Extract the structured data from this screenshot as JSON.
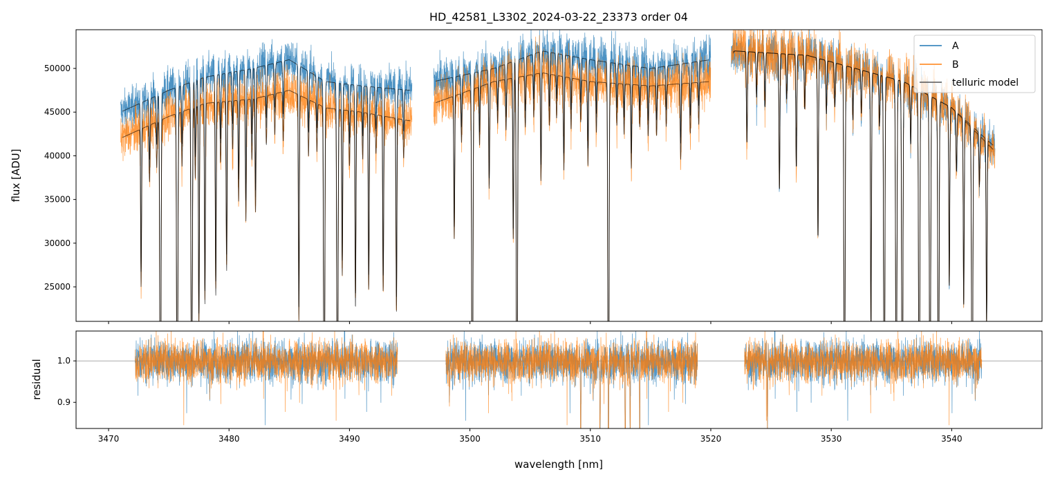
{
  "chart_data": [
    {
      "type": "line",
      "title": "HD_42581_L3302_2024-03-22_23373  order 04",
      "xlabel": "",
      "ylabel": "flux [ADU]",
      "xlim": [
        3467.3,
        3547.5
      ],
      "ylim": [
        21050,
        54430
      ],
      "xticks": [
        3470,
        3480,
        3490,
        3500,
        3510,
        3520,
        3530,
        3540
      ],
      "yticks": [
        25000,
        30000,
        35000,
        40000,
        45000,
        50000
      ],
      "ytick_labels": [
        "25000",
        "30000",
        "35000",
        "40000",
        "45000",
        "50000"
      ],
      "legend": {
        "placement": "top-right",
        "entries": [
          "A",
          "B",
          "telluric model"
        ]
      },
      "segments": [
        [
          3471.0,
          3495.2
        ],
        [
          3497.0,
          3520.0
        ],
        [
          3521.7,
          3543.6
        ]
      ],
      "series": [
        {
          "name": "A",
          "color": "#1f77b4",
          "noise_frac": 0.025,
          "continuum": [
            [
              3471,
              45000
            ],
            [
              3475,
              47500
            ],
            [
              3478,
              49000
            ],
            [
              3482,
              50000
            ],
            [
              3485,
              51000
            ],
            [
              3488,
              48500
            ],
            [
              3491,
              48000
            ],
            [
              3495,
              47500
            ],
            [
              3497,
              48500
            ],
            [
              3502,
              50000
            ],
            [
              3506,
              52000
            ],
            [
              3510,
              51000
            ],
            [
              3515,
              50000
            ],
            [
              3520,
              51000
            ],
            [
              3522,
              52000
            ],
            [
              3528,
              51500
            ],
            [
              3532,
              50000
            ],
            [
              3536,
              48500
            ],
            [
              3540,
              45500
            ],
            [
              3543.6,
              41000
            ]
          ]
        },
        {
          "name": "B",
          "color": "#ff7f0e",
          "noise_frac": 0.03,
          "continuum": [
            [
              3471,
              42000
            ],
            [
              3475,
              44500
            ],
            [
              3478,
              46000
            ],
            [
              3482,
              46500
            ],
            [
              3485,
              47500
            ],
            [
              3488,
              45500
            ],
            [
              3491,
              45000
            ],
            [
              3495,
              44000
            ],
            [
              3497,
              46000
            ],
            [
              3502,
              48500
            ],
            [
              3506,
              49500
            ],
            [
              3510,
              48500
            ],
            [
              3515,
              48000
            ],
            [
              3520,
              48500
            ],
            [
              3522,
              52000
            ],
            [
              3528,
              51500
            ],
            [
              3532,
              50000
            ],
            [
              3536,
              48500
            ],
            [
              3540,
              45500
            ],
            [
              3543.6,
              40500
            ]
          ]
        },
        {
          "name": "telluric model",
          "color": "#000000"
        }
      ],
      "telluric_lines": [
        [
          3472.7,
          0.42
        ],
        [
          3474.3,
          0.9
        ],
        [
          3475.7,
          0.9
        ],
        [
          3476.9,
          0.9
        ],
        [
          3477.5,
          0.55
        ],
        [
          3478.0,
          0.5
        ],
        [
          3478.9,
          0.48
        ],
        [
          3479.8,
          0.42
        ],
        [
          3480.8,
          0.25
        ],
        [
          3481.4,
          0.3
        ],
        [
          3482.2,
          0.28
        ],
        [
          3485.8,
          0.55
        ],
        [
          3487.9,
          0.9
        ],
        [
          3489.0,
          0.9
        ],
        [
          3489.4,
          0.42
        ],
        [
          3490.5,
          0.5
        ],
        [
          3491.6,
          0.45
        ],
        [
          3492.8,
          0.45
        ],
        [
          3493.9,
          0.5
        ],
        [
          3498.7,
          0.35
        ],
        [
          3500.2,
          0.9
        ],
        [
          3501.6,
          0.25
        ],
        [
          3503.6,
          0.38
        ],
        [
          3503.9,
          0.9
        ],
        [
          3505.9,
          0.25
        ],
        [
          3507.8,
          0.22
        ],
        [
          3509.8,
          0.2
        ],
        [
          3511.5,
          0.9
        ],
        [
          3513.4,
          0.2
        ],
        [
          3515.5,
          0.12
        ],
        [
          3517.5,
          0.18
        ],
        [
          3523.0,
          0.2
        ],
        [
          3525.7,
          0.3
        ],
        [
          3527.1,
          0.25
        ],
        [
          3528.9,
          0.4
        ],
        [
          3531.1,
          0.9
        ],
        [
          3533.3,
          0.6
        ],
        [
          3534.4,
          0.9
        ],
        [
          3535.4,
          0.9
        ],
        [
          3535.9,
          0.9
        ],
        [
          3537.3,
          0.9
        ],
        [
          3538.2,
          0.9
        ],
        [
          3538.9,
          0.9
        ],
        [
          3539.8,
          0.45
        ],
        [
          3541.0,
          0.48
        ],
        [
          3541.7,
          0.9
        ],
        [
          3542.9,
          0.5
        ],
        [
          3473.4,
          0.15
        ],
        [
          3474.0,
          0.12
        ],
        [
          3476.1,
          0.14
        ],
        [
          3477.2,
          0.18
        ],
        [
          3479.3,
          0.15
        ],
        [
          3480.3,
          0.12
        ],
        [
          3481.9,
          0.15
        ],
        [
          3483.1,
          0.12
        ],
        [
          3483.8,
          0.1
        ],
        [
          3484.5,
          0.12
        ],
        [
          3486.6,
          0.14
        ],
        [
          3487.3,
          0.12
        ],
        [
          3490.0,
          0.14
        ],
        [
          3491.1,
          0.12
        ],
        [
          3492.2,
          0.1
        ],
        [
          3494.5,
          0.1
        ],
        [
          3499.3,
          0.12
        ],
        [
          3500.8,
          0.14
        ],
        [
          3502.3,
          0.1
        ],
        [
          3503.0,
          0.12
        ],
        [
          3504.6,
          0.12
        ],
        [
          3505.3,
          0.1
        ],
        [
          3506.6,
          0.12
        ],
        [
          3507.2,
          0.1
        ],
        [
          3508.4,
          0.12
        ],
        [
          3509.2,
          0.1
        ],
        [
          3510.5,
          0.12
        ],
        [
          3512.2,
          0.1
        ],
        [
          3512.8,
          0.12
        ],
        [
          3514.1,
          0.1
        ],
        [
          3514.8,
          0.12
        ],
        [
          3516.3,
          0.1
        ],
        [
          3518.3,
          0.12
        ],
        [
          3519.0,
          0.1
        ],
        [
          3523.8,
          0.1
        ],
        [
          3524.5,
          0.12
        ],
        [
          3526.3,
          0.1
        ],
        [
          3527.8,
          0.12
        ],
        [
          3529.6,
          0.12
        ],
        [
          3530.3,
          0.1
        ],
        [
          3531.8,
          0.12
        ],
        [
          3532.5,
          0.1
        ],
        [
          3534.0,
          0.12
        ],
        [
          3536.6,
          0.14
        ],
        [
          3540.4,
          0.15
        ],
        [
          3542.3,
          0.14
        ]
      ]
    },
    {
      "type": "line",
      "title": "",
      "xlabel": "wavelength [nm]",
      "ylabel": "residual",
      "xlim": [
        3467.3,
        3547.5
      ],
      "ylim": [
        0.837,
        1.072
      ],
      "xticks": [
        3470,
        3480,
        3490,
        3500,
        3510,
        3520,
        3530,
        3540
      ],
      "xtick_labels": [
        "3470",
        "3480",
        "3490",
        "3500",
        "3510",
        "3520",
        "3530",
        "3540"
      ],
      "yticks": [
        0.9,
        1.0
      ],
      "ytick_labels": [
        "0.9",
        "1.0"
      ],
      "reference_line": 1.0,
      "segments": [
        [
          3472.2,
          3494.0
        ],
        [
          3498.0,
          3518.9
        ],
        [
          3522.8,
          3542.5
        ]
      ],
      "series": [
        {
          "name": "A",
          "color": "#1f77b4",
          "noise": 0.025
        },
        {
          "name": "B",
          "color": "#ff7f0e",
          "noise": 0.025
        }
      ],
      "dips": [
        [
          3509.2,
          0.25
        ],
        [
          3510.8,
          0.2
        ],
        [
          3511.5,
          0.3
        ],
        [
          3512.9,
          0.25
        ],
        [
          3513.3,
          0.2
        ],
        [
          3514.1,
          0.2
        ],
        [
          3524.7,
          0.18
        ],
        [
          3498.3,
          0.1
        ]
      ]
    }
  ]
}
